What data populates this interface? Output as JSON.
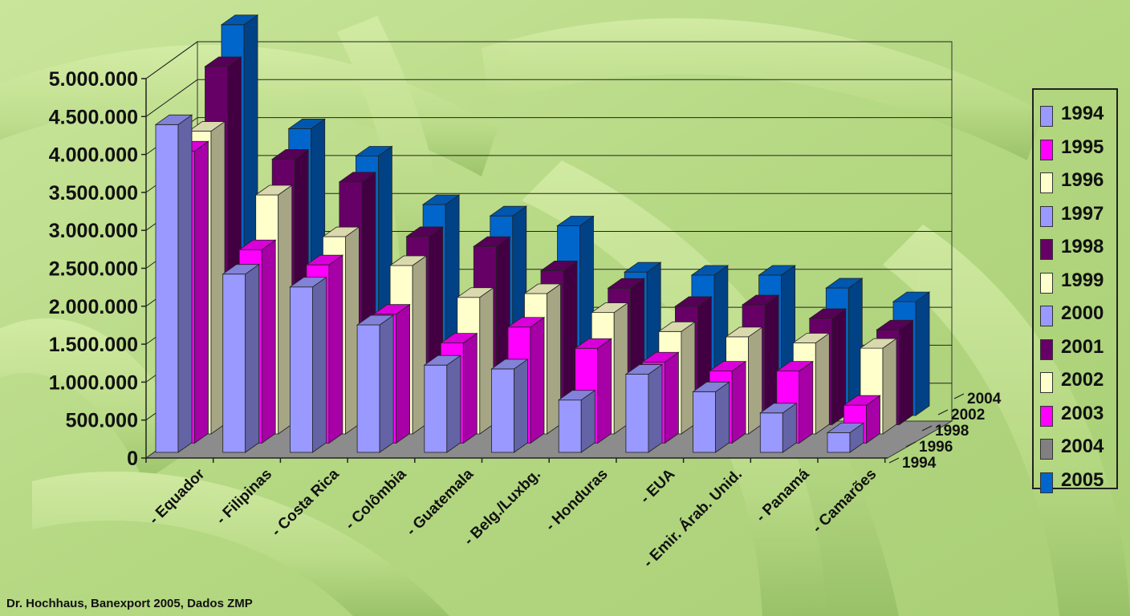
{
  "chart_data": {
    "type": "bar",
    "subtype": "3d-clustered-column",
    "categories": [
      "- Equador",
      "- Filipinas",
      "- Costa Rica",
      "- Colômbia",
      "- Guatemala",
      "- Belg./Luxbg.",
      "- Honduras",
      "- EUA",
      "- Emir. Árab. Unid.",
      "- Panamá",
      "- Camarões"
    ],
    "series": [
      {
        "name": "1994",
        "color": "#9999FF",
        "values": [
          4320000,
          2350000,
          2180000,
          1680000,
          1150000,
          1100000,
          690000,
          1030000,
          800000,
          520000,
          260000
        ]
      },
      {
        "name": "1995",
        "color": "#FF00FF",
        "values": [
          3850000,
          2550000,
          2350000,
          1700000,
          1320000,
          1530000,
          1250000,
          1070000,
          950000,
          950000,
          500000
        ]
      },
      {
        "name": "1996",
        "color": "#FFFFCC",
        "values": [
          3990000,
          3150000,
          2600000,
          2220000,
          1800000,
          1850000,
          1600000,
          1350000,
          1280000,
          1200000,
          1130000
        ]
      },
      {
        "name": "1997",
        "color": "#9999FF",
        "values": [
          null,
          null,
          null,
          null,
          null,
          null,
          null,
          null,
          null,
          null,
          null
        ]
      },
      {
        "name": "1998",
        "color": "#660066",
        "values": [
          4720000,
          3500000,
          3200000,
          2480000,
          2350000,
          2030000,
          1800000,
          1560000,
          1580000,
          1400000,
          1250000
        ]
      },
      {
        "name": "1999",
        "color": "#FFFFCC",
        "values": [
          null,
          null,
          null,
          null,
          null,
          null,
          null,
          null,
          null,
          null,
          null
        ]
      },
      {
        "name": "2000",
        "color": "#9999FF",
        "values": [
          null,
          null,
          null,
          null,
          null,
          null,
          null,
          null,
          null,
          null,
          null
        ]
      },
      {
        "name": "2001",
        "color": "#660066",
        "values": [
          null,
          null,
          null,
          null,
          null,
          null,
          null,
          null,
          null,
          null,
          null
        ]
      },
      {
        "name": "2002",
        "color": "#FFFFCC",
        "values": [
          null,
          null,
          null,
          null,
          null,
          null,
          null,
          null,
          null,
          null,
          null
        ]
      },
      {
        "name": "2003",
        "color": "#FF00FF",
        "values": [
          null,
          null,
          null,
          null,
          null,
          null,
          null,
          null,
          null,
          null,
          null
        ]
      },
      {
        "name": "2004",
        "color": "#808080",
        "values": [
          null,
          null,
          null,
          null,
          null,
          null,
          null,
          null,
          null,
          null,
          null
        ]
      },
      {
        "name": "2005",
        "color": "#0066CC",
        "values": [
          5150000,
          3780000,
          3420000,
          2780000,
          2630000,
          2500000,
          1890000,
          1850000,
          1850000,
          1680000,
          1500000
        ]
      }
    ],
    "y_ticks": [
      "0",
      "500.000",
      "1.000.000",
      "1.500.000",
      "2.000.000",
      "2.500.000",
      "3.000.000",
      "3.500.000",
      "4.000.000",
      "4.500.000",
      "5.000.000"
    ],
    "ylim": [
      0,
      5000000
    ],
    "depth_labels": [
      "1994",
      "1996",
      "1998",
      "2002",
      "2004"
    ],
    "grid": true,
    "legend_position": "right"
  },
  "footer": {
    "credit": "Dr. Hochhaus, Banexport 2005, Dados ZMP"
  }
}
